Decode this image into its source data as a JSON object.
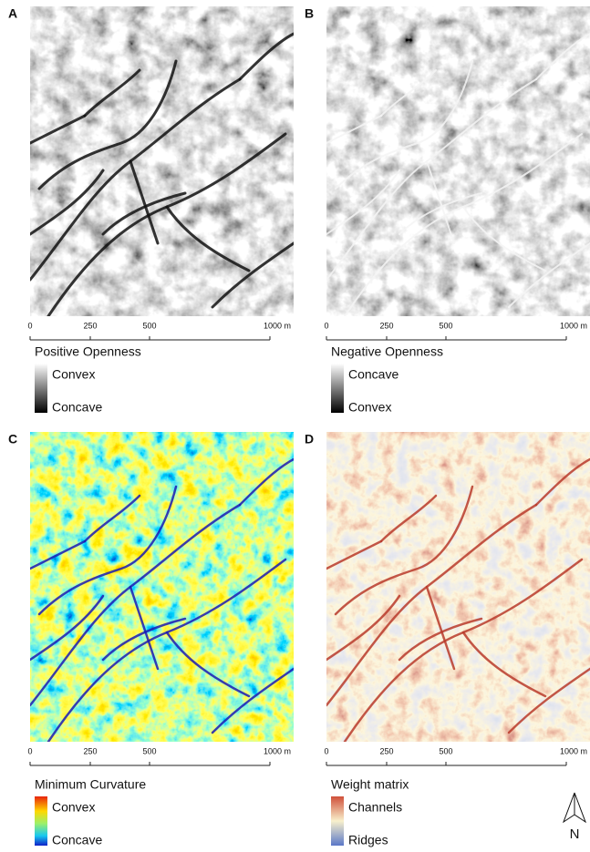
{
  "panels": [
    {
      "label": "A",
      "scale_ticks": [
        "0",
        "250",
        "500",
        "1000 m"
      ],
      "legend": {
        "title": "Positive Openness",
        "high": "Convex",
        "low": "Concave"
      }
    },
    {
      "label": "B",
      "scale_ticks": [
        "0",
        "250",
        "500",
        "1000 m"
      ],
      "legend": {
        "title": "Negative Openness",
        "high": "Concave",
        "low": "Convex"
      }
    },
    {
      "label": "C",
      "scale_ticks": [
        "0",
        "250",
        "500",
        "1000 m"
      ],
      "legend": {
        "title": "Minimum Curvature",
        "high": "Convex",
        "low": "Concave"
      }
    },
    {
      "label": "D",
      "scale_ticks": [
        "0",
        "250",
        "500",
        "1000 m"
      ],
      "legend": {
        "title": "Weight matrix",
        "high": "Channels",
        "low": "Ridges"
      }
    }
  ],
  "north_arrow": "N"
}
